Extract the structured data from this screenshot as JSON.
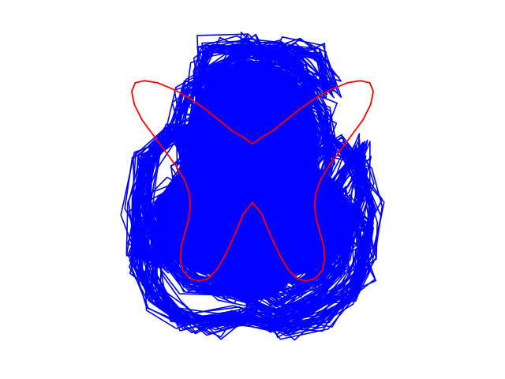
{
  "chart_data": {
    "type": "line",
    "title": "",
    "xlabel": "",
    "ylabel": "",
    "axes_visible": false,
    "grid": false,
    "legend": "none",
    "xlim": [
      -4.2,
      4.2
    ],
    "ylim": [
      -4.1,
      2.55
    ],
    "series": [
      {
        "color": "#0000ff",
        "description_kind": "dense random-walk butterfly scribble",
        "x": [
          0.0,
          -0.6,
          -1.3,
          -1.15,
          -1.0,
          -0.2,
          0.6,
          1.1,
          1.3,
          0.7,
          0.0,
          -0.8,
          -1.5,
          -1.7,
          -1.4,
          -0.6,
          0.3,
          1.2,
          1.6,
          1.75,
          1.45,
          0.8,
          -0.1,
          -1.0,
          -1.8,
          -2.3,
          -2.35,
          -2.0,
          -1.4,
          -0.6,
          0.2,
          1.1,
          1.9,
          2.35,
          2.45,
          2.1,
          1.5,
          0.6,
          -0.3,
          -1.3,
          -2.1,
          -2.55,
          -2.6,
          -2.4,
          -1.8,
          -1.0,
          -0.4,
          0.3,
          1.0,
          1.8,
          2.4,
          2.65,
          2.55,
          2.1,
          1.3,
          0.5,
          -0.5,
          -1.5,
          -2.2,
          -2.55,
          -2.45,
          -1.9,
          -1.1,
          -0.3,
          0.0,
          0.4,
          1.2,
          2.0,
          2.5,
          2.55,
          2.2,
          1.5,
          0.7,
          0.0,
          -0.9,
          -1.7,
          -2.2,
          -2.1,
          -1.5,
          -0.6,
          0.3,
          1.2,
          1.9,
          2.2,
          2.0,
          1.4,
          0.5,
          -0.5,
          -1.3,
          -1.9,
          -2.05,
          -1.6,
          -0.8,
          0.0,
          0.9,
          1.6,
          1.95,
          1.8,
          1.1,
          0.2,
          -0.7,
          -1.4,
          -1.6,
          -1.3,
          -0.5,
          0.4,
          1.2,
          1.45,
          1.1,
          0.3,
          -0.5,
          -0.9,
          -0.4,
          0.0,
          0.3,
          0.9,
          1.45,
          1.7,
          0.9,
          -0.2,
          -1.0,
          -0.5,
          0.1
        ],
        "y": [
          0.0,
          0.6,
          1.2,
          2.1,
          2.5,
          2.55,
          2.45,
          2.0,
          1.2,
          0.8,
          1.4,
          1.9,
          1.5,
          0.5,
          -0.3,
          0.2,
          0.9,
          1.6,
          1.0,
          0.0,
          -0.9,
          -0.3,
          0.4,
          0.9,
          0.5,
          -0.2,
          -1.3,
          -2.2,
          -2.9,
          -3.1,
          -2.4,
          -1.5,
          -0.6,
          0.2,
          -0.8,
          -1.9,
          -2.8,
          -3.3,
          -2.6,
          -2.0,
          -2.4,
          -2.1,
          -1.1,
          -0.1,
          0.6,
          0.2,
          -0.5,
          -1.0,
          -0.3,
          0.4,
          -0.2,
          -1.2,
          -2.2,
          -3.0,
          -3.5,
          -3.9,
          -3.6,
          -3.8,
          -3.3,
          -2.5,
          -1.6,
          -0.9,
          -1.6,
          -2.6,
          -3.3,
          -2.7,
          -1.8,
          -1.0,
          -1.7,
          -2.6,
          -3.2,
          -3.75,
          -3.95,
          -3.6,
          -3.9,
          -3.6,
          -2.8,
          -1.7,
          -1.2,
          -1.8,
          -2.3,
          -1.6,
          -0.8,
          -1.5,
          -2.5,
          -3.3,
          -3.6,
          -3.0,
          -2.7,
          -2.0,
          -1.0,
          -0.6,
          -1.3,
          -2.1,
          -1.4,
          -0.7,
          -1.3,
          -2.2,
          -2.9,
          -2.5,
          -2.0,
          -1.3,
          -0.4,
          0.3,
          -0.2,
          -0.9,
          -0.3,
          0.5,
          1.1,
          1.4,
          0.8,
          1.6,
          2.2,
          2.6,
          2.3,
          2.5,
          2.35,
          1.5,
          2.1,
          2.4,
          1.8,
          1.0,
          0.0
        ]
      },
      {
        "color": "#ff0000",
        "x": [
          0.0,
          0.2,
          0.45,
          0.75,
          1.05,
          1.4,
          1.75,
          2.1,
          2.4,
          2.6,
          2.68,
          2.62,
          2.45,
          2.2,
          1.95,
          1.7,
          1.5,
          1.4,
          1.38,
          1.42,
          1.5,
          1.58,
          1.6,
          1.55,
          1.4,
          1.2,
          1.0,
          0.8,
          0.6,
          0.4,
          0.2,
          0.0,
          -0.2,
          -0.4,
          -0.6,
          -0.8,
          -1.0,
          -1.2,
          -1.4,
          -1.55,
          -1.6,
          -1.58,
          -1.5,
          -1.42,
          -1.38,
          -1.4,
          -1.5,
          -1.7,
          -1.95,
          -2.2,
          -2.45,
          -2.62,
          -2.68,
          -2.6,
          -2.4,
          -2.1,
          -1.75,
          -1.4,
          -1.05,
          -0.75,
          -0.45,
          -0.2,
          0.0
        ],
        "y": [
          0.3,
          0.45,
          0.6,
          0.85,
          1.1,
          1.35,
          1.55,
          1.7,
          1.75,
          1.7,
          1.5,
          1.2,
          0.85,
          0.5,
          0.15,
          -0.2,
          -0.55,
          -0.85,
          -1.15,
          -1.45,
          -1.75,
          -2.05,
          -2.35,
          -2.6,
          -2.78,
          -2.85,
          -2.8,
          -2.6,
          -2.25,
          -1.8,
          -1.3,
          -1.05,
          -1.3,
          -1.8,
          -2.25,
          -2.6,
          -2.8,
          -2.85,
          -2.78,
          -2.6,
          -2.35,
          -2.05,
          -1.75,
          -1.45,
          -1.15,
          -0.85,
          -0.55,
          -0.2,
          0.15,
          0.5,
          0.85,
          1.2,
          1.5,
          1.7,
          1.75,
          1.7,
          1.55,
          1.35,
          1.1,
          0.85,
          0.6,
          0.45,
          0.3
        ]
      }
    ]
  }
}
